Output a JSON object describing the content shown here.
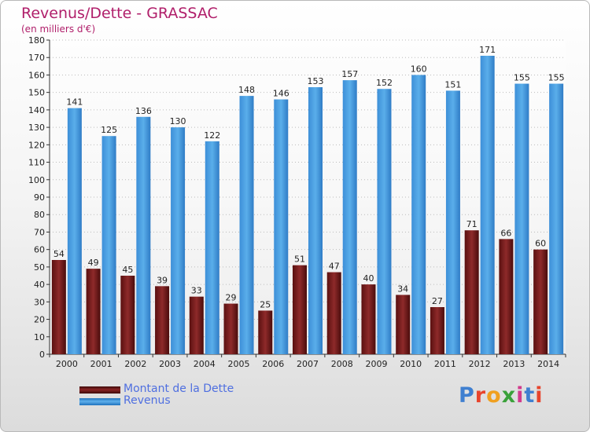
{
  "header": {
    "title": "Revenus/Dette - GRASSAC",
    "subtitle": "(en milliers d'€)"
  },
  "legend": [
    {
      "label": "Montant de la Dette",
      "color": "#7a1b1b"
    },
    {
      "label": "Revenus",
      "color": "#4a9ee0"
    }
  ],
  "logo": {
    "text": "Proxiti"
  },
  "colors": {
    "dette": "#7a1b1b",
    "revenus": "#4a9ee0",
    "axis": "#333333",
    "grid": "#bcbcbc",
    "title": "#b01e6a"
  },
  "chart_data": {
    "type": "bar",
    "categories": [
      "2000",
      "2001",
      "2002",
      "2003",
      "2004",
      "2005",
      "2006",
      "2007",
      "2008",
      "2009",
      "2010",
      "2011",
      "2012",
      "2013",
      "2014"
    ],
    "series": [
      {
        "name": "Montant de la Dette",
        "values": [
          54,
          49,
          45,
          39,
          33,
          29,
          25,
          51,
          47,
          40,
          34,
          27,
          71,
          66,
          60
        ]
      },
      {
        "name": "Revenus",
        "values": [
          141,
          125,
          136,
          130,
          122,
          148,
          146,
          153,
          157,
          152,
          160,
          151,
          171,
          155,
          155
        ]
      }
    ],
    "title": "Revenus/Dette - GRASSAC",
    "subtitle": "(en milliers d'€)",
    "xlabel": "",
    "ylabel": "",
    "ylim": [
      0,
      180
    ],
    "ytick_step": 10,
    "grid": true,
    "legend_position": "bottom-left"
  }
}
